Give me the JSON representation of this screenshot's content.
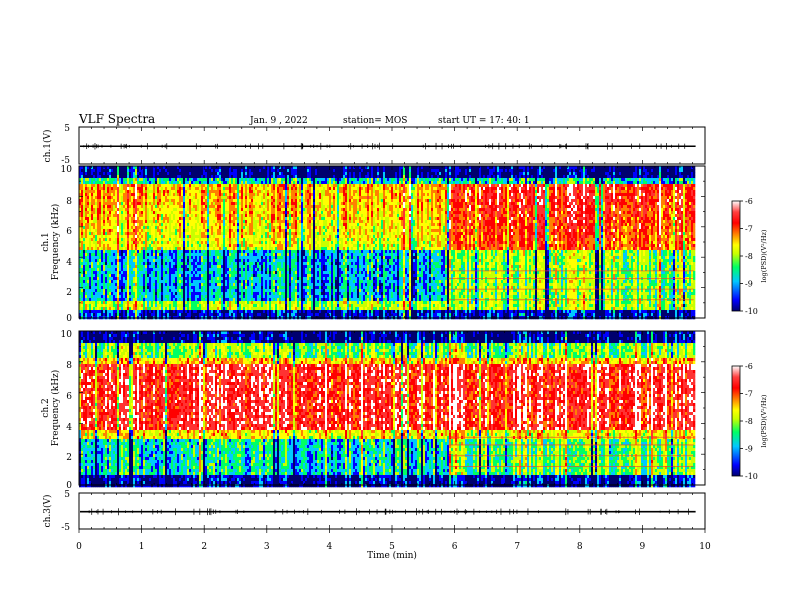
{
  "header": {
    "title": "VLF Spectra",
    "date": "Jan. 9 , 2022",
    "station": "station= MOS",
    "start_time": "start  UT =   17: 40: 1"
  },
  "chart_data": [
    {
      "type": "line",
      "name": "waveform-ch1",
      "ylabel": "ch.1(V)",
      "ylim": [
        -5,
        5
      ],
      "yticks": [
        "5",
        "-5"
      ],
      "xlim": [
        0,
        10
      ],
      "values_description": "",
      "level": -0.2
    },
    {
      "type": "heatmap",
      "name": "spectrogram-ch1",
      "ylabel_line1": "ch.1",
      "ylabel_line2": "Frequency (kHz)",
      "ylim": [
        0,
        10
      ],
      "yticks": [
        "0",
        "2",
        "4",
        "6",
        "8",
        "10"
      ],
      "xlim": [
        0,
        10
      ],
      "data_end_min": 9.82,
      "colorbar": {
        "label": "log(PSD)(V²/Hz)",
        "range": [
          -10,
          -6
        ],
        "ticks": [
          "-6",
          "-7",
          "-8",
          "-9",
          "-10"
        ]
      }
    },
    {
      "type": "heatmap",
      "name": "spectrogram-ch2",
      "ylabel_line1": "ch.2",
      "ylabel_line2": "Frequency (kHz)",
      "ylim": [
        0,
        10
      ],
      "yticks": [
        "0",
        "2",
        "4",
        "6",
        "8",
        "10"
      ],
      "xlim": [
        0,
        10
      ],
      "data_end_min": 9.82,
      "colorbar": {
        "label": "log(PSD)(V²/Hz)",
        "range": [
          -10,
          -6
        ],
        "ticks": [
          "-6",
          "-7",
          "-8",
          "-9",
          "-10"
        ]
      }
    },
    {
      "type": "line",
      "name": "waveform-ch3",
      "ylabel": "ch.3(V)",
      "ylim": [
        -5,
        5
      ],
      "yticks": [
        "5",
        "-5"
      ],
      "xlim": [
        0,
        10
      ],
      "level": -0.2
    }
  ],
  "x_axis": {
    "label": "Time (min)",
    "ticks": [
      "0",
      "1",
      "2",
      "3",
      "4",
      "5",
      "6",
      "7",
      "8",
      "9",
      "10"
    ]
  },
  "colors": {
    "colormap": [
      "#00006e",
      "#0000ff",
      "#00c8ff",
      "#00ff64",
      "#c8ff00",
      "#ffff00",
      "#ff8000",
      "#ff0000",
      "#ff3232",
      "#ffffff"
    ]
  }
}
